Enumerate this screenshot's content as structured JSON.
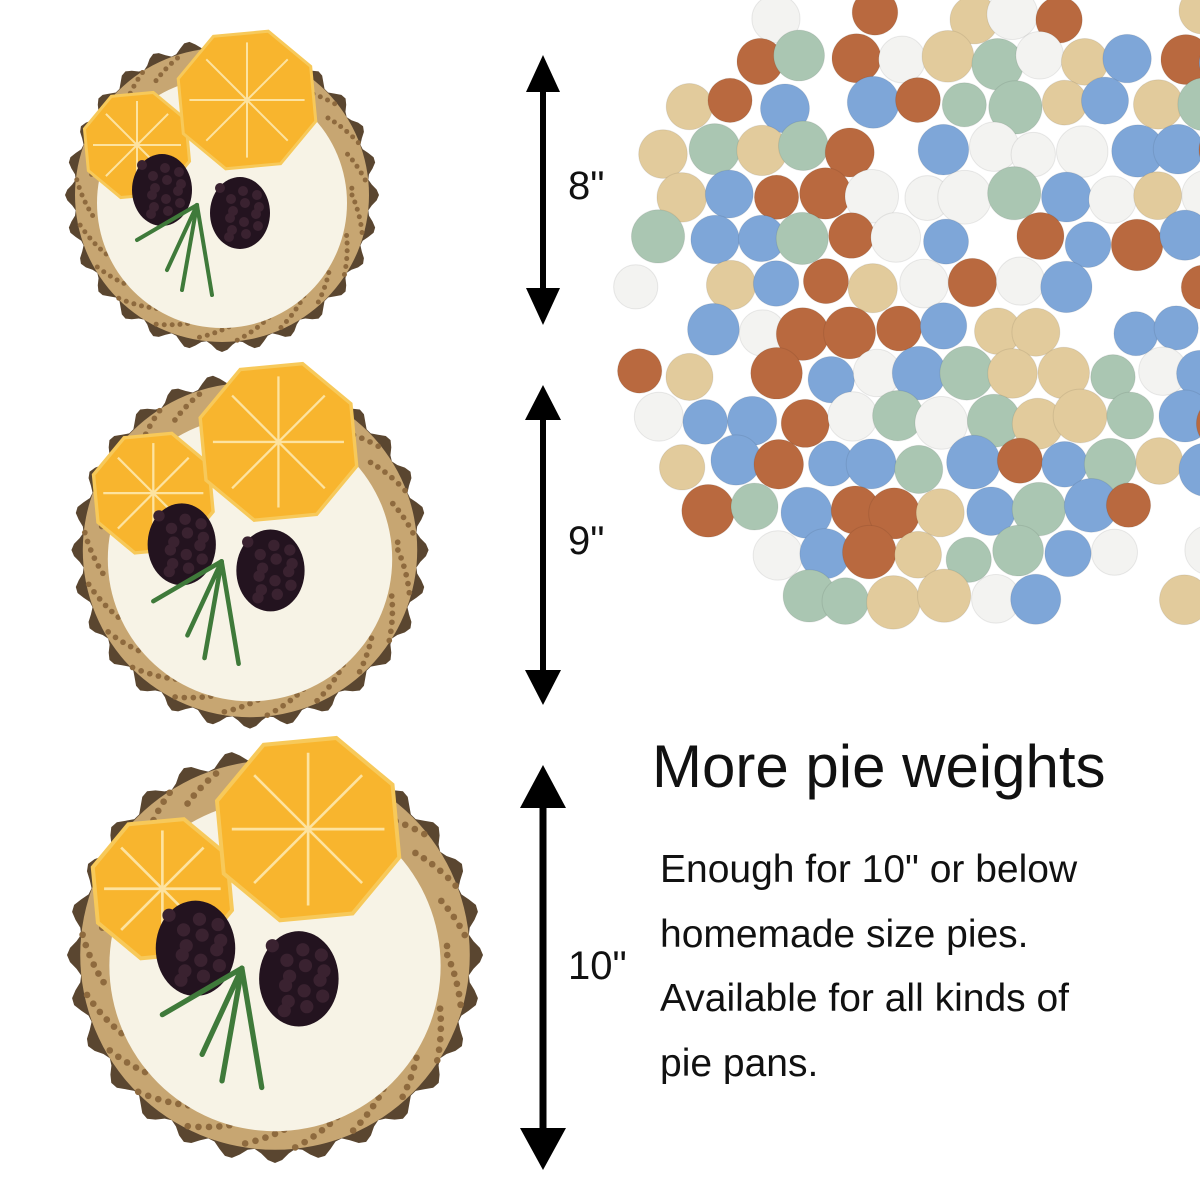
{
  "sizes": [
    {
      "label": "8\""
    },
    {
      "label": "9\""
    },
    {
      "label": "10\""
    }
  ],
  "heading": "More pie weights",
  "description": [
    "Enough for 10\" or below",
    "homemade size pies.",
    "Available for all kinds of",
    "pie pans."
  ],
  "colors": {
    "ball_colors": [
      "#7ea6d8",
      "#f3f3f1",
      "#b9693f",
      "#aac6b2",
      "#e2cb9c"
    ],
    "crust": "#c7a672",
    "cream": "#f7f3e6",
    "orange": "#f8b52e",
    "blackberry": "#23131f",
    "rosemary": "#3f7a3a",
    "arrow": "#000000"
  }
}
